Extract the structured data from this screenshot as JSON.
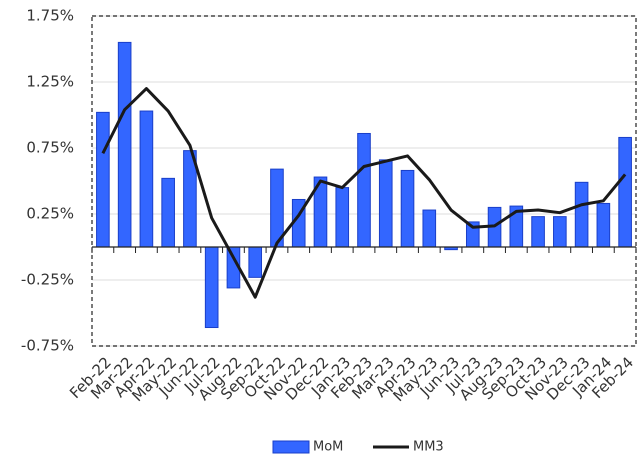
{
  "chart_data": {
    "type": "bar-line",
    "categories": [
      "Feb-22",
      "Mar-22",
      "Apr-22",
      "May-22",
      "Jun-22",
      "Jul-22",
      "Aug-22",
      "Sep-22",
      "Oct-22",
      "Nov-22",
      "Dec-22",
      "Jan-23",
      "Feb-23",
      "Mar-23",
      "Apr-23",
      "May-23",
      "Jun-23",
      "Jul-23",
      "Aug-23",
      "Sep-23",
      "Oct-23",
      "Nov-23",
      "Dec-23",
      "Jan-24",
      "Feb-24"
    ],
    "series": [
      {
        "name": "MoM",
        "type": "bar",
        "color": "#3366ff",
        "values": [
          1.02,
          1.55,
          1.03,
          0.52,
          0.73,
          -0.61,
          -0.31,
          -0.23,
          0.59,
          0.36,
          0.53,
          0.45,
          0.86,
          0.66,
          0.58,
          0.28,
          -0.02,
          0.19,
          0.3,
          0.31,
          0.23,
          0.23,
          0.49,
          0.33,
          0.83
        ]
      },
      {
        "name": "MM3",
        "type": "line",
        "color": "#1a1a1a",
        "values": [
          0.71,
          1.04,
          1.2,
          1.03,
          0.77,
          0.22,
          -0.08,
          -0.38,
          0.03,
          0.24,
          0.5,
          0.45,
          0.61,
          0.65,
          0.69,
          0.51,
          0.28,
          0.15,
          0.16,
          0.27,
          0.28,
          0.26,
          0.32,
          0.35,
          0.55
        ]
      }
    ],
    "ylim": [
      -0.75,
      1.75
    ],
    "yticks": [
      {
        "value": -0.75,
        "label": "-0.75%"
      },
      {
        "value": -0.25,
        "label": "-0.25%"
      },
      {
        "value": 0.25,
        "label": "0.25%"
      },
      {
        "value": 0.75,
        "label": "0.75%"
      },
      {
        "value": 1.25,
        "label": "1.25%"
      },
      {
        "value": 1.75,
        "label": "1.75%"
      }
    ],
    "grid": true,
    "legend": "bottom"
  }
}
